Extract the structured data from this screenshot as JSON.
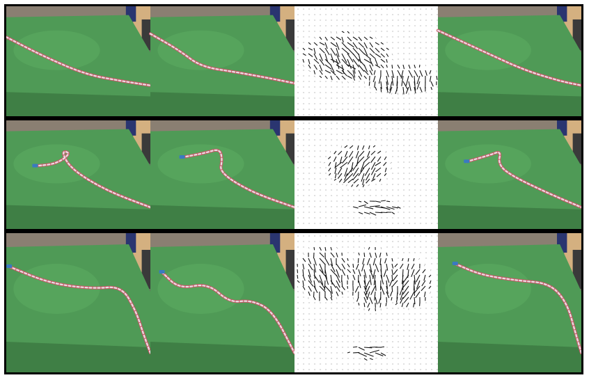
{
  "figure": {
    "rows": [
      {
        "name": "rope-straight-diagonal",
        "panels": [
          "scene-start",
          "scene-goal",
          "optical-flow-field",
          "scene-predicted"
        ],
        "rope_colors": [
          "#c95a6a",
          "#e8e0e4"
        ],
        "table_color": "#4f9a56"
      },
      {
        "name": "rope-loop",
        "panels": [
          "scene-start",
          "scene-goal",
          "optical-flow-field",
          "scene-predicted"
        ],
        "rope_colors": [
          "#c95a6a",
          "#e8e0e4"
        ],
        "rope_end_color": "#3a7ac0",
        "table_color": "#4f9a56"
      },
      {
        "name": "rope-wave",
        "panels": [
          "scene-start",
          "scene-goal",
          "optical-flow-field",
          "scene-predicted"
        ],
        "rope_colors": [
          "#c95a6a",
          "#e8e0e4"
        ],
        "rope_end_color": "#3a7ac0",
        "table_color": "#4f9a56"
      }
    ]
  }
}
